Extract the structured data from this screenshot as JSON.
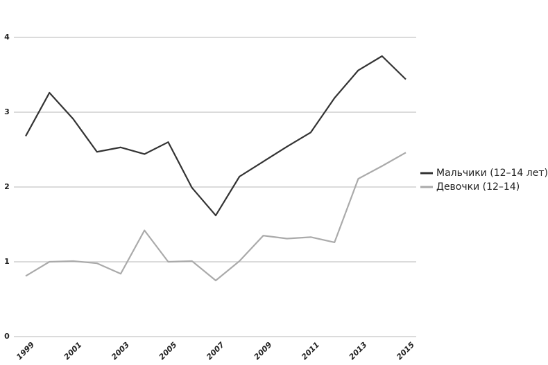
{
  "chart_data": {
    "type": "line",
    "x": [
      1999,
      2000,
      2001,
      2002,
      2003,
      2004,
      2005,
      2006,
      2007,
      2008,
      2009,
      2010,
      2011,
      2012,
      2013,
      2014,
      2015
    ],
    "series": [
      {
        "name": "Мальчики (12–14 лет)",
        "color": "#333333",
        "values": [
          2.68,
          3.26,
          2.91,
          2.47,
          2.53,
          2.44,
          2.6,
          1.99,
          1.62,
          2.14,
          2.34,
          2.54,
          2.73,
          3.19,
          3.56,
          3.75,
          3.44
        ]
      },
      {
        "name": "Девочки (12–14)",
        "color": "#aaaaaa",
        "values": [
          0.81,
          1.0,
          1.01,
          0.98,
          0.84,
          1.42,
          1.0,
          1.01,
          0.75,
          1.01,
          1.35,
          1.31,
          1.33,
          1.26,
          2.11,
          2.28,
          2.46
        ]
      }
    ],
    "xlim": [
      1999,
      2015
    ],
    "xticks": [
      1999,
      2001,
      2003,
      2005,
      2007,
      2009,
      2011,
      2013,
      2015
    ],
    "ylim": [
      0,
      4
    ],
    "yticks": [
      0,
      1,
      2,
      3,
      4
    ],
    "grid": true,
    "legend": "right"
  }
}
